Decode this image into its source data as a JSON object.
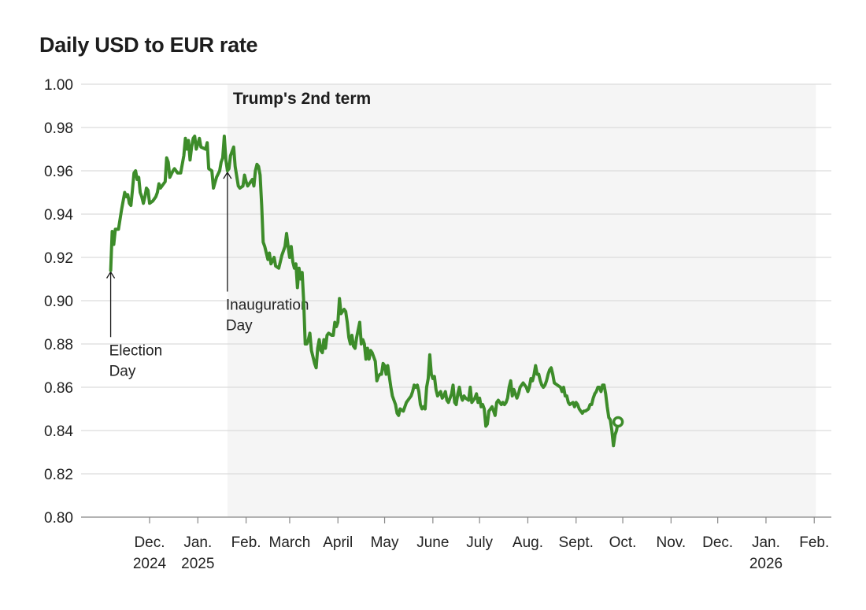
{
  "chart_data": {
    "type": "line",
    "title": "Daily USD to EUR rate",
    "xlabel": "",
    "ylabel": "",
    "ylim": [
      0.8,
      1.0
    ],
    "yticks": [
      "0.80",
      "0.82",
      "0.84",
      "0.86",
      "0.88",
      "0.90",
      "0.92",
      "0.94",
      "0.96",
      "0.98",
      "1.00"
    ],
    "grid": true,
    "x_unit": "days since Nov. 1, 2024",
    "xlim": [
      -14,
      468
    ],
    "xticks": [
      {
        "day": 30,
        "line1": "Dec.",
        "line2": "2024"
      },
      {
        "day": 61,
        "line1": "Jan.",
        "line2": "2025"
      },
      {
        "day": 92,
        "line1": "Feb.",
        "line2": ""
      },
      {
        "day": 120,
        "line1": "March",
        "line2": ""
      },
      {
        "day": 151,
        "line1": "April",
        "line2": ""
      },
      {
        "day": 181,
        "line1": "May",
        "line2": ""
      },
      {
        "day": 212,
        "line1": "June",
        "line2": ""
      },
      {
        "day": 242,
        "line1": "July",
        "line2": ""
      },
      {
        "day": 273,
        "line1": "Aug.",
        "line2": ""
      },
      {
        "day": 304,
        "line1": "Sept.",
        "line2": ""
      },
      {
        "day": 334,
        "line1": "Oct.",
        "line2": ""
      },
      {
        "day": 365,
        "line1": "Nov.",
        "line2": ""
      },
      {
        "day": 395,
        "line1": "Dec.",
        "line2": ""
      },
      {
        "day": 426,
        "line1": "Jan.",
        "line2": "2026"
      },
      {
        "day": 457,
        "line1": "Feb.",
        "line2": ""
      }
    ],
    "shaded_region": {
      "label": "Trump's 2nd term",
      "start_day": 80,
      "end_day": 458
    },
    "annotations": [
      {
        "name": "election-day",
        "line1": "Election",
        "line2": "Day",
        "day": 5,
        "value": 0.914,
        "text_value": 0.885
      },
      {
        "name": "inauguration-day",
        "line1": "Inauguration",
        "line2": "Day",
        "day": 80,
        "value": 0.96,
        "text_value": 0.906
      }
    ],
    "series": [
      {
        "name": "USD to EUR",
        "color": "#3d8c2a",
        "points": [
          [
            5,
            0.914
          ],
          [
            6,
            0.932
          ],
          [
            7,
            0.926
          ],
          [
            8,
            0.933
          ],
          [
            10,
            0.933
          ],
          [
            12,
            0.942
          ],
          [
            14,
            0.95
          ],
          [
            15,
            0.948
          ],
          [
            16,
            0.949
          ],
          [
            17,
            0.945
          ],
          [
            18,
            0.944
          ],
          [
            19,
            0.951
          ],
          [
            20,
            0.959
          ],
          [
            21,
            0.96
          ],
          [
            22,
            0.956
          ],
          [
            23,
            0.957
          ],
          [
            24,
            0.95
          ],
          [
            25,
            0.948
          ],
          [
            26,
            0.945
          ],
          [
            27,
            0.948
          ],
          [
            28,
            0.952
          ],
          [
            29,
            0.951
          ],
          [
            30,
            0.945
          ],
          [
            32,
            0.946
          ],
          [
            34,
            0.948
          ],
          [
            35,
            0.95
          ],
          [
            36,
            0.954
          ],
          [
            37,
            0.952
          ],
          [
            39,
            0.954
          ],
          [
            40,
            0.955
          ],
          [
            41,
            0.966
          ],
          [
            42,
            0.964
          ],
          [
            43,
            0.957
          ],
          [
            45,
            0.96
          ],
          [
            46,
            0.961
          ],
          [
            48,
            0.959
          ],
          [
            50,
            0.959
          ],
          [
            51,
            0.963
          ],
          [
            52,
            0.967
          ],
          [
            53,
            0.975
          ],
          [
            54,
            0.97
          ],
          [
            55,
            0.974
          ],
          [
            56,
            0.965
          ],
          [
            57,
            0.971
          ],
          [
            58,
            0.975
          ],
          [
            59,
            0.976
          ],
          [
            60,
            0.97
          ],
          [
            62,
            0.975
          ],
          [
            63,
            0.971
          ],
          [
            66,
            0.97
          ],
          [
            67,
            0.973
          ],
          [
            68,
            0.961
          ],
          [
            70,
            0.96
          ],
          [
            71,
            0.952
          ],
          [
            73,
            0.957
          ],
          [
            75,
            0.96
          ],
          [
            76,
            0.964
          ],
          [
            77,
            0.966
          ],
          [
            78,
            0.976
          ],
          [
            79,
            0.965
          ],
          [
            80,
            0.96
          ],
          [
            81,
            0.961
          ],
          [
            82,
            0.967
          ],
          [
            83,
            0.969
          ],
          [
            84,
            0.971
          ],
          [
            85,
            0.962
          ],
          [
            87,
            0.953
          ],
          [
            88,
            0.952
          ],
          [
            90,
            0.953
          ],
          [
            91,
            0.958
          ],
          [
            92,
            0.955
          ],
          [
            93,
            0.953
          ],
          [
            95,
            0.955
          ],
          [
            96,
            0.956
          ],
          [
            97,
            0.953
          ],
          [
            98,
            0.96
          ],
          [
            99,
            0.963
          ],
          [
            100,
            0.962
          ],
          [
            101,
            0.958
          ],
          [
            102,
            0.944
          ],
          [
            103,
            0.927
          ],
          [
            104,
            0.925
          ],
          [
            105,
            0.922
          ],
          [
            106,
            0.919
          ],
          [
            107,
            0.922
          ],
          [
            108,
            0.917
          ],
          [
            110,
            0.92
          ],
          [
            111,
            0.916
          ],
          [
            113,
            0.915
          ],
          [
            115,
            0.921
          ],
          [
            117,
            0.925
          ],
          [
            118,
            0.931
          ],
          [
            119,
            0.925
          ],
          [
            120,
            0.92
          ],
          [
            121,
            0.925
          ],
          [
            122,
            0.918
          ],
          [
            123,
            0.915
          ],
          [
            124,
            0.917
          ],
          [
            125,
            0.906
          ],
          [
            126,
            0.915
          ],
          [
            127,
            0.91
          ],
          [
            128,
            0.913
          ],
          [
            129,
            0.9
          ],
          [
            130,
            0.88
          ],
          [
            131,
            0.88
          ],
          [
            132,
            0.882
          ],
          [
            133,
            0.885
          ],
          [
            134,
            0.877
          ],
          [
            136,
            0.871
          ],
          [
            137,
            0.869
          ],
          [
            138,
            0.878
          ],
          [
            139,
            0.882
          ],
          [
            140,
            0.877
          ],
          [
            141,
            0.876
          ],
          [
            142,
            0.882
          ],
          [
            143,
            0.878
          ],
          [
            144,
            0.884
          ],
          [
            145,
            0.885
          ],
          [
            147,
            0.884
          ],
          [
            148,
            0.884
          ],
          [
            149,
            0.89
          ],
          [
            150,
            0.888
          ],
          [
            151,
            0.89
          ],
          [
            152,
            0.901
          ],
          [
            153,
            0.894
          ],
          [
            155,
            0.896
          ],
          [
            156,
            0.895
          ],
          [
            157,
            0.89
          ],
          [
            158,
            0.883
          ],
          [
            159,
            0.88
          ],
          [
            160,
            0.884
          ],
          [
            161,
            0.879
          ],
          [
            162,
            0.878
          ],
          [
            163,
            0.883
          ],
          [
            165,
            0.89
          ],
          [
            166,
            0.88
          ],
          [
            167,
            0.882
          ],
          [
            168,
            0.88
          ],
          [
            169,
            0.873
          ],
          [
            170,
            0.878
          ],
          [
            171,
            0.873
          ],
          [
            172,
            0.877
          ],
          [
            173,
            0.876
          ],
          [
            174,
            0.874
          ],
          [
            175,
            0.872
          ],
          [
            176,
            0.863
          ],
          [
            177,
            0.865
          ],
          [
            178,
            0.866
          ],
          [
            179,
            0.866
          ],
          [
            180,
            0.871
          ],
          [
            181,
            0.87
          ],
          [
            182,
            0.866
          ],
          [
            183,
            0.87
          ],
          [
            185,
            0.86
          ],
          [
            186,
            0.856
          ],
          [
            187,
            0.854
          ],
          [
            188,
            0.852
          ],
          [
            189,
            0.848
          ],
          [
            190,
            0.847
          ],
          [
            191,
            0.85
          ],
          [
            193,
            0.849
          ],
          [
            195,
            0.853
          ],
          [
            196,
            0.854
          ],
          [
            198,
            0.856
          ],
          [
            199,
            0.858
          ],
          [
            200,
            0.861
          ],
          [
            201,
            0.86
          ],
          [
            202,
            0.861
          ],
          [
            203,
            0.858
          ],
          [
            204,
            0.852
          ],
          [
            205,
            0.85
          ],
          [
            206,
            0.851
          ],
          [
            207,
            0.85
          ],
          [
            208,
            0.86
          ],
          [
            209,
            0.864
          ],
          [
            210,
            0.875
          ],
          [
            211,
            0.866
          ],
          [
            212,
            0.864
          ],
          [
            213,
            0.865
          ],
          [
            214,
            0.859
          ],
          [
            215,
            0.856
          ],
          [
            216,
            0.857
          ],
          [
            217,
            0.858
          ],
          [
            218,
            0.855
          ],
          [
            219,
            0.856
          ],
          [
            220,
            0.858
          ],
          [
            221,
            0.854
          ],
          [
            222,
            0.853
          ],
          [
            223,
            0.855
          ],
          [
            224,
            0.857
          ],
          [
            225,
            0.861
          ],
          [
            226,
            0.853
          ],
          [
            227,
            0.852
          ],
          [
            228,
            0.857
          ],
          [
            229,
            0.86
          ],
          [
            230,
            0.856
          ],
          [
            231,
            0.854
          ],
          [
            232,
            0.856
          ],
          [
            233,
            0.855
          ],
          [
            235,
            0.854
          ],
          [
            236,
            0.86
          ],
          [
            237,
            0.853
          ],
          [
            239,
            0.855
          ],
          [
            240,
            0.857
          ],
          [
            241,
            0.853
          ],
          [
            242,
            0.855
          ],
          [
            243,
            0.851
          ],
          [
            244,
            0.852
          ],
          [
            245,
            0.85
          ],
          [
            246,
            0.842
          ],
          [
            247,
            0.843
          ],
          [
            248,
            0.849
          ],
          [
            250,
            0.851
          ],
          [
            251,
            0.849
          ],
          [
            252,
            0.847
          ],
          [
            253,
            0.853
          ],
          [
            254,
            0.854
          ],
          [
            255,
            0.853
          ],
          [
            256,
            0.852
          ],
          [
            257,
            0.853
          ],
          [
            258,
            0.852
          ],
          [
            259,
            0.853
          ],
          [
            260,
            0.855
          ],
          [
            261,
            0.86
          ],
          [
            262,
            0.863
          ],
          [
            263,
            0.856
          ],
          [
            264,
            0.859
          ],
          [
            265,
            0.857
          ],
          [
            266,
            0.855
          ],
          [
            267,
            0.857
          ],
          [
            268,
            0.86
          ],
          [
            270,
            0.862
          ],
          [
            272,
            0.86
          ],
          [
            273,
            0.858
          ],
          [
            274,
            0.86
          ],
          [
            275,
            0.864
          ],
          [
            276,
            0.863
          ],
          [
            277,
            0.866
          ],
          [
            278,
            0.87
          ],
          [
            279,
            0.866
          ],
          [
            280,
            0.866
          ],
          [
            281,
            0.863
          ],
          [
            282,
            0.861
          ],
          [
            283,
            0.86
          ],
          [
            284,
            0.861
          ],
          [
            285,
            0.863
          ],
          [
            286,
            0.866
          ],
          [
            287,
            0.868
          ],
          [
            288,
            0.869
          ],
          [
            289,
            0.866
          ],
          [
            290,
            0.862
          ],
          [
            292,
            0.861
          ],
          [
            294,
            0.86
          ],
          [
            295,
            0.858
          ],
          [
            296,
            0.86
          ],
          [
            297,
            0.856
          ],
          [
            298,
            0.856
          ],
          [
            299,
            0.853
          ],
          [
            300,
            0.852
          ],
          [
            302,
            0.853
          ],
          [
            303,
            0.851
          ],
          [
            304,
            0.853
          ],
          [
            305,
            0.852
          ],
          [
            306,
            0.85
          ],
          [
            307,
            0.849
          ],
          [
            308,
            0.848
          ],
          [
            309,
            0.849
          ],
          [
            310,
            0.849
          ],
          [
            312,
            0.85
          ],
          [
            313,
            0.852
          ],
          [
            314,
            0.852
          ],
          [
            315,
            0.855
          ],
          [
            316,
            0.857
          ],
          [
            317,
            0.858
          ],
          [
            318,
            0.86
          ],
          [
            319,
            0.86
          ],
          [
            320,
            0.858
          ],
          [
            321,
            0.861
          ],
          [
            322,
            0.861
          ],
          [
            323,
            0.857
          ],
          [
            324,
            0.851
          ],
          [
            325,
            0.846
          ],
          [
            326,
            0.845
          ],
          [
            327,
            0.84
          ],
          [
            328,
            0.833
          ],
          [
            329,
            0.838
          ],
          [
            330,
            0.84
          ],
          [
            331,
            0.844
          ]
        ],
        "end_marker": {
          "day": 331,
          "value": 0.844
        }
      }
    ]
  }
}
